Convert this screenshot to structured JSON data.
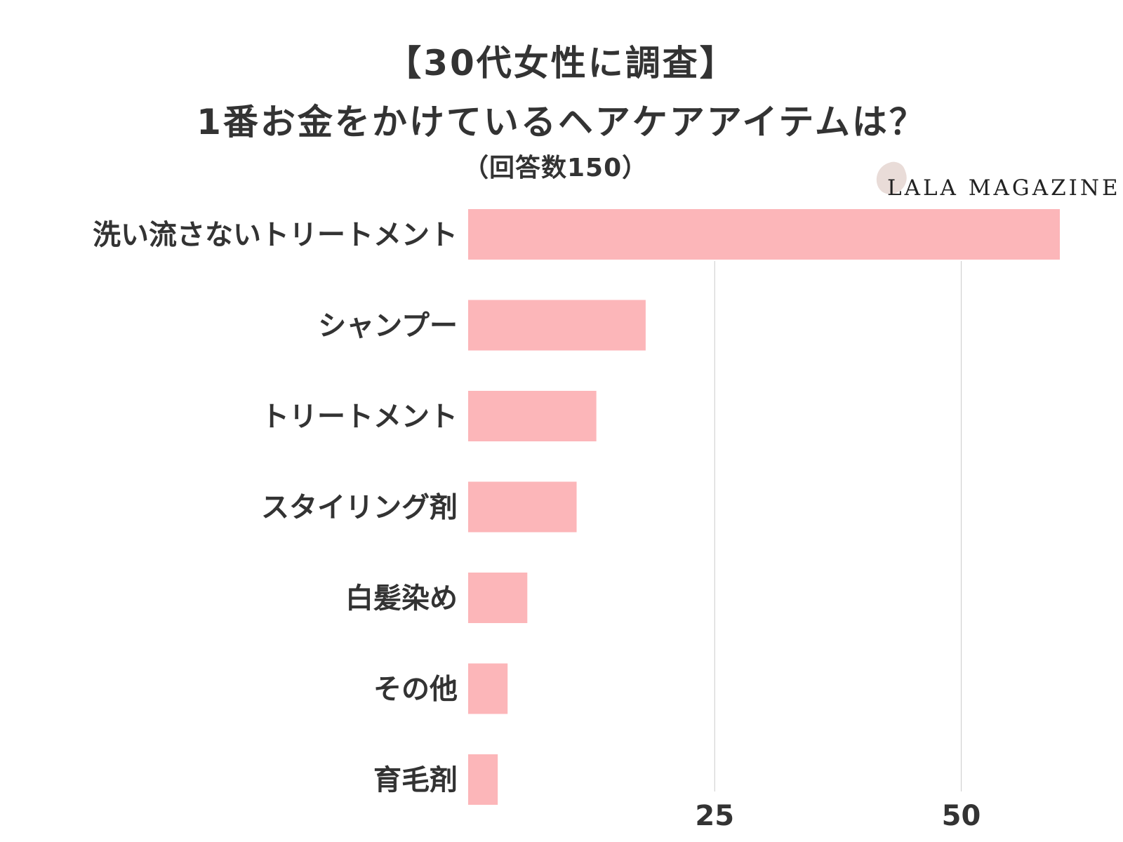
{
  "header": {
    "title_line1": "【30代女性に調査】",
    "title_line2": "1番お金をかけているヘアケアアイテムは？",
    "subtitle": "（回答数150）"
  },
  "logo": {
    "text": "LALA MAGAZINE"
  },
  "colors": {
    "bar": "#fcb6b9",
    "grid": "#cccccc",
    "text": "#333333"
  },
  "chart_data": {
    "type": "bar",
    "orientation": "horizontal",
    "title": "【30代女性に調査】 1番お金をかけているヘアケアアイテムは？",
    "subtitle": "（回答数150）",
    "categories": [
      "洗い流さないトリートメント",
      "シャンプー",
      "トリートメント",
      "スタイリング剤",
      "白髪染め",
      "その他",
      "育毛剤"
    ],
    "values": [
      60,
      18,
      13,
      11,
      6,
      4,
      3
    ],
    "xlim": [
      0,
      64
    ],
    "xticks": [
      25,
      50
    ],
    "grid": true,
    "xlabel": "",
    "ylabel": ""
  }
}
